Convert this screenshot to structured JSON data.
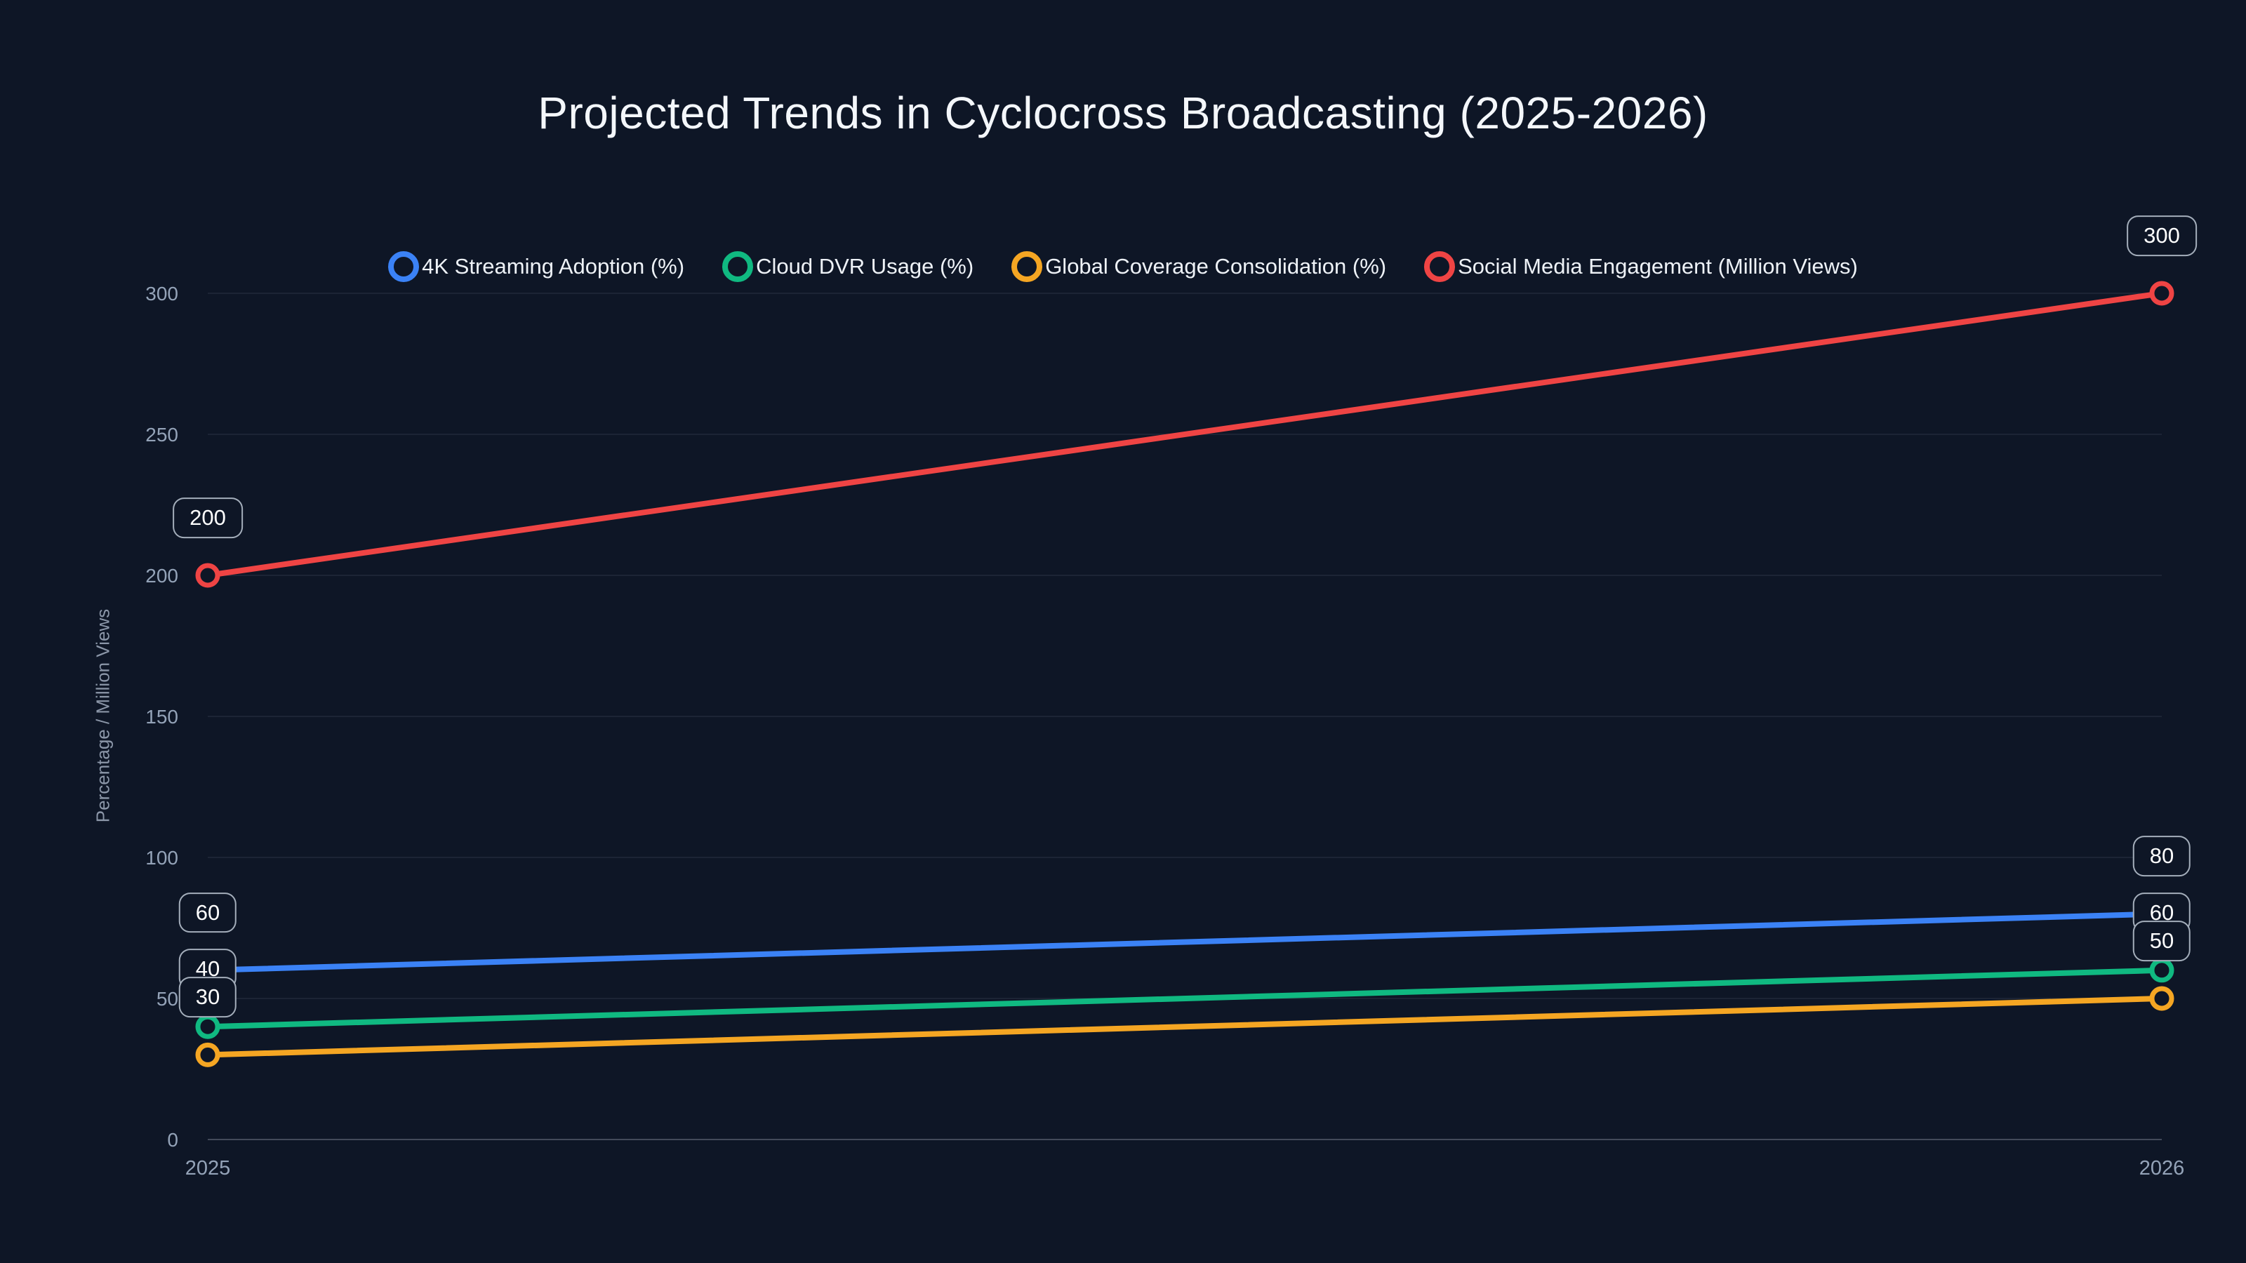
{
  "title": "Projected Trends in Cyclocross Broadcasting (2025-2026)",
  "colors": {
    "background": "#0e1626",
    "grid": "rgba(148,163,184,0.14)",
    "axis": "rgba(203,213,225,0.28)",
    "tick": "#94a3b8",
    "title_text": "#f4f7fb",
    "legend_text": "#eef2f7",
    "label_border": "rgba(203,213,225,0.8)",
    "label_text": "#ffffff"
  },
  "chart_data": {
    "type": "line",
    "categories": [
      "2025",
      "2026"
    ],
    "series": [
      {
        "name": "4K Streaming Adoption (%)",
        "color": "#3b82f6",
        "values": [
          60,
          80
        ]
      },
      {
        "name": "Cloud DVR Usage (%)",
        "color": "#10b981",
        "values": [
          40,
          60
        ]
      },
      {
        "name": "Global Coverage Consolidation (%)",
        "color": "#f5a623",
        "values": [
          30,
          50
        ]
      },
      {
        "name": "Social Media Engagement (Million Views)",
        "color": "#ef4444",
        "values": [
          200,
          300
        ]
      }
    ],
    "xlabel": "",
    "ylabel": "Percentage / Million Views",
    "ylim": [
      0,
      300
    ],
    "yticks": [
      0,
      50,
      100,
      150,
      200,
      250,
      300
    ],
    "grid": true,
    "legend_position": "top",
    "data_labels": true
  }
}
